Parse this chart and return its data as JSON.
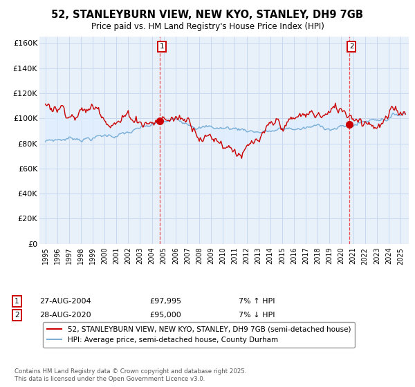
{
  "title_line1": "52, STANLEYBURN VIEW, NEW KYO, STANLEY, DH9 7GB",
  "title_line2": "Price paid vs. HM Land Registry's House Price Index (HPI)",
  "ylim": [
    0,
    165000
  ],
  "yticks": [
    0,
    20000,
    40000,
    60000,
    80000,
    100000,
    120000,
    140000,
    160000
  ],
  "sale1_date": "27-AUG-2004",
  "sale1_price": 97995,
  "sale1_hpi_text": "7% ↑ HPI",
  "sale2_date": "28-AUG-2020",
  "sale2_price": 95000,
  "sale2_hpi_text": "7% ↓ HPI",
  "legend_line1": "52, STANLEYBURN VIEW, NEW KYO, STANLEY, DH9 7GB (semi-detached house)",
  "legend_line2": "HPI: Average price, semi-detached house, County Durham",
  "footer": "Contains HM Land Registry data © Crown copyright and database right 2025.\nThis data is licensed under the Open Government Licence v3.0.",
  "line_color_red": "#cc0000",
  "line_color_blue": "#7aaed6",
  "fill_color": "#ddeeff",
  "background_color": "#e8f0fa",
  "grid_color": "#c8d8f0",
  "dashed_line_color": "#ee3333",
  "marker_color": "#cc0000",
  "sale1_x": 2004.667,
  "sale2_x": 2020.667
}
